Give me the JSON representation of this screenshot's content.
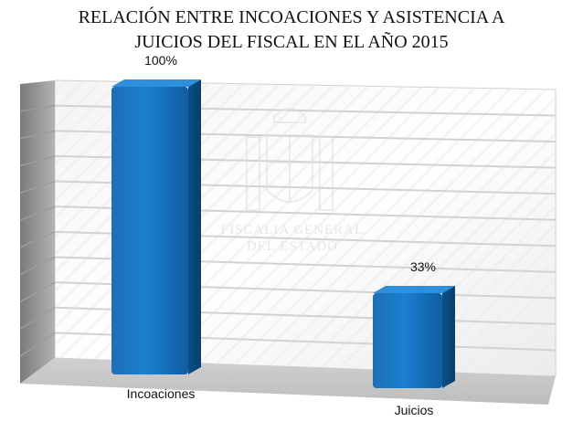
{
  "title_lines": [
    "RELACIÓN ENTRE INCOACIONES Y ASISTENCIA A",
    "JUICIOS DEL FISCAL EN EL AÑO 2015"
  ],
  "watermark": {
    "lines": [
      "FISCALIA GENERAL",
      "DEL ESTADO"
    ]
  },
  "chart_data": {
    "type": "bar",
    "title": "RELACIÓN ENTRE INCOACIONES Y ASISTENCIA A JUICIOS DEL FISCAL EN EL AÑO 2015",
    "categories": [
      "Incoaciones",
      "Juicios"
    ],
    "values": [
      100,
      33
    ],
    "data_labels": [
      "100%",
      "33%"
    ],
    "unit": "%",
    "ylim": [
      0,
      110
    ],
    "grid": true,
    "legend": "none",
    "bar_color": "#1a73bd"
  }
}
